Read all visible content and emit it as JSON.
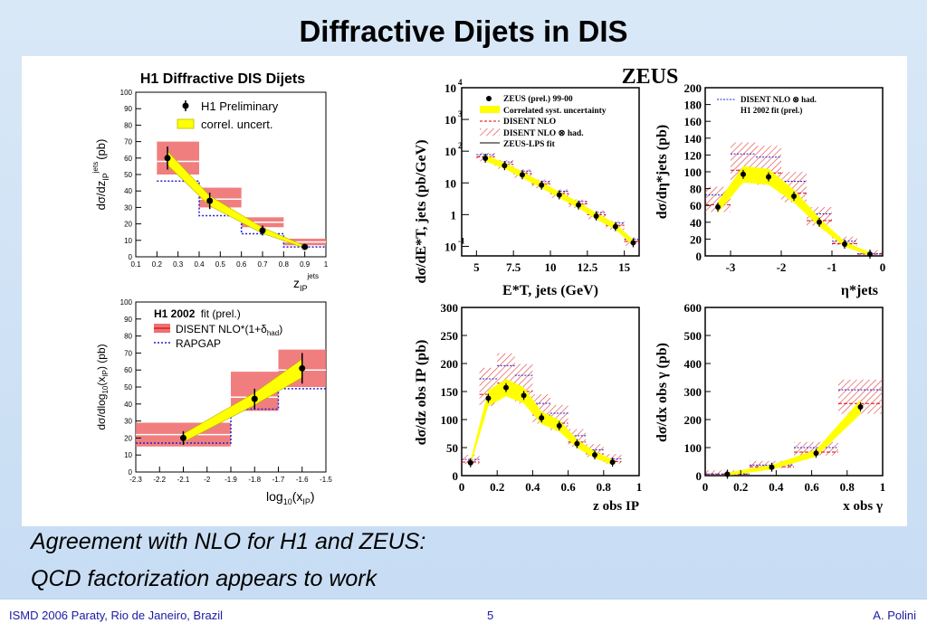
{
  "slide": {
    "title": "Diffractive Dijets in DIS",
    "caption_line1": "Agreement with NLO for H1 and ZEUS:",
    "caption_line2": "QCD factorization appears to work"
  },
  "footer": {
    "conference": "ISMD 2006 Paraty, Rio de Janeiro, Brazil",
    "page_number": "5",
    "author": "A. Polini"
  },
  "h1": {
    "group_title": "H1 Diffractive DIS Dijets",
    "top_legend": [
      "H1 Preliminary",
      "correl. uncert."
    ],
    "bottom_legend": {
      "h1_2002": "H1 2002",
      "fit_prel": "fit (prel.)",
      "disent": "DISENT NLO*(1+δ",
      "disent_sub": "had",
      "disent_close": ")",
      "rapgap": "RAPGAP"
    },
    "top_axes": {
      "ylabel": "dσ/dz",
      "ylabel_sub": "IP",
      "ylabel_sup": "jets",
      "ylabel_unit": "(pb)",
      "xlabel": "z",
      "xlabel_sub": "IP",
      "xlabel_sup": "jets"
    },
    "bottom_axes": {
      "ylabel": "dσ/dlog",
      "ylabel_sub": "10",
      "ylabel_rest": "(x",
      "ylabel_sub2": "IP",
      "ylabel_unit": ") (pb)",
      "xlabel": "log",
      "xlabel_sub": "10",
      "xlabel_rest": "(x",
      "xlabel_sub2": "IP",
      "xlabel_close": ")"
    }
  },
  "zeus": {
    "group_title": "ZEUS",
    "legend": [
      "ZEUS (prel.) 99-00",
      "Correlated syst. uncertainty",
      "DISENT NLO",
      "DISENT NLO ⊗ had.",
      "ZEUS-LPS fit"
    ],
    "legend2": [
      "DISENT NLO ⊗ had.",
      "H1 2002 fit (prel.)"
    ],
    "et_axes": {
      "ylabel": "dσ/dE*T, jets (pb/GeV)",
      "xlabel": "E*T, jets (GeV)"
    },
    "eta_axes": {
      "ylabel": "dσ/dη*jets (pb)",
      "xlabel": "η*jets"
    },
    "zip_axes": {
      "ylabel": "dσ/dz obs IP (pb)",
      "xlabel": "z obs IP"
    },
    "xg_axes": {
      "ylabel": "dσ/dx obs γ (pb)",
      "xlabel": "x obs γ"
    }
  },
  "colors": {
    "band": "#ffff00",
    "nlo_fill": "#f07070",
    "nlo_line": "#e00000",
    "rapgap": "#2020d0",
    "footer_text": "#1a1aa6"
  },
  "chart_data": [
    {
      "id": "h1_zip",
      "type": "scatter",
      "xlabel": "z_IP^jets",
      "ylabel": "dσ/dz_IP^jets (pb)",
      "xlim": [
        0.1,
        1.0
      ],
      "ylim": [
        0,
        100
      ],
      "xticks": [
        "0.1",
        "0.2",
        "0.3",
        "0.4",
        "0.5",
        "0.6",
        "0.7",
        "0.8",
        "0.9",
        "1"
      ],
      "yticks": [
        "0",
        "10",
        "20",
        "30",
        "40",
        "50",
        "60",
        "70",
        "80",
        "90",
        "100"
      ],
      "bins": [
        0.2,
        0.4,
        0.6,
        0.8,
        1.0
      ],
      "data_x": [
        0.25,
        0.45,
        0.7,
        0.9
      ],
      "data_y": [
        60,
        34,
        16,
        6
      ],
      "data_err": [
        7,
        5,
        3,
        1
      ],
      "nlo_low": [
        50,
        30,
        18,
        7
      ],
      "nlo_high": [
        70,
        42,
        24,
        11
      ],
      "nlo_central": [
        58,
        35,
        21,
        9
      ],
      "rapgap": [
        46,
        25,
        14,
        6
      ]
    },
    {
      "id": "h1_logxip",
      "type": "scatter",
      "xlabel": "log10(x_IP)",
      "ylabel": "dσ/dlog10(x_IP) (pb)",
      "xlim": [
        -2.3,
        -1.5
      ],
      "ylim": [
        0,
        100
      ],
      "xticks": [
        "-2.3",
        "-2.2",
        "-2.1",
        "-2",
        "-1.9",
        "-1.8",
        "-1.7",
        "-1.6",
        "-1.5"
      ],
      "yticks": [
        "0",
        "10",
        "20",
        "30",
        "40",
        "50",
        "60",
        "70",
        "80",
        "90",
        "100"
      ],
      "bins": [
        -2.3,
        -1.9,
        -1.7,
        -1.5
      ],
      "data_x": [
        -2.1,
        -1.8,
        -1.6
      ],
      "data_y": [
        20,
        43,
        61
      ],
      "data_err": [
        4,
        6,
        9
      ],
      "nlo_low": [
        15,
        36,
        50
      ],
      "nlo_high": [
        29,
        59,
        72
      ],
      "nlo_central": [
        22,
        44,
        60
      ],
      "rapgap": [
        17,
        37,
        49
      ]
    },
    {
      "id": "zeus_et",
      "type": "scatter",
      "xlabel": "E*_T,jets (GeV)",
      "ylabel": "dσ/dE*_T,jets (pb/GeV)",
      "log_y": true,
      "xlim": [
        4,
        16
      ],
      "ylim": [
        0.05,
        10000
      ],
      "xticks": [
        "5",
        "7.5",
        "10",
        "12.5",
        "15"
      ],
      "bins": [
        5,
        6.25,
        7.5,
        8.75,
        10,
        11.25,
        12.5,
        13.75,
        15,
        16.25
      ],
      "data_x": [
        5.6,
        6.9,
        8.1,
        9.4,
        10.6,
        11.9,
        13.1,
        14.4,
        15.6
      ],
      "data_y": [
        60,
        35,
        18,
        8.5,
        4.2,
        2.0,
        0.9,
        0.42,
        0.13
      ]
    },
    {
      "id": "zeus_eta",
      "type": "scatter",
      "xlabel": "η*_jets",
      "ylabel": "dσ/dη*_jets (pb)",
      "xlim": [
        -3.5,
        0
      ],
      "ylim": [
        0,
        200
      ],
      "xticks": [
        "-3",
        "-2",
        "-1",
        "0"
      ],
      "yticks": [
        "0",
        "20",
        "40",
        "60",
        "80",
        "100",
        "120",
        "140",
        "160",
        "180",
        "200"
      ],
      "bins": [
        -3.5,
        -3,
        -2.5,
        -2,
        -1.5,
        -1,
        -0.5,
        0
      ],
      "data_x": [
        -3.25,
        -2.75,
        -2.25,
        -1.75,
        -1.25,
        -0.75,
        -0.25
      ],
      "data_y": [
        58,
        97,
        94,
        71,
        40,
        14,
        2
      ]
    },
    {
      "id": "zeus_zip",
      "type": "scatter",
      "xlabel": "z_IP^obs",
      "ylabel": "dσ/dz_IP^obs (pb)",
      "xlim": [
        0,
        1
      ],
      "ylim": [
        0,
        300
      ],
      "xticks": [
        "0",
        "0.2",
        "0.4",
        "0.6",
        "0.8",
        "1"
      ],
      "yticks": [
        "0",
        "50",
        "100",
        "150",
        "200",
        "250",
        "300"
      ],
      "bins": [
        0,
        0.1,
        0.2,
        0.3,
        0.4,
        0.5,
        0.6,
        0.7,
        0.8,
        0.9,
        1.0
      ],
      "data_x": [
        0.05,
        0.15,
        0.25,
        0.35,
        0.45,
        0.55,
        0.65,
        0.75,
        0.85
      ],
      "data_y": [
        23,
        138,
        157,
        143,
        103,
        89,
        57,
        37,
        24
      ]
    },
    {
      "id": "zeus_xg",
      "type": "scatter",
      "xlabel": "x_γ^obs",
      "ylabel": "dσ/dx_γ^obs (pb)",
      "xlim": [
        0,
        1
      ],
      "ylim": [
        0,
        600
      ],
      "xticks": [
        "0",
        "0.2",
        "0.4",
        "0.6",
        "0.8",
        "1"
      ],
      "yticks": [
        "0",
        "100",
        "200",
        "300",
        "400",
        "500",
        "600"
      ],
      "bins": [
        0,
        0.25,
        0.5,
        0.75,
        1.0
      ],
      "data_x": [
        0.125,
        0.375,
        0.625,
        0.875
      ],
      "data_y": [
        5,
        30,
        80,
        245
      ]
    }
  ]
}
